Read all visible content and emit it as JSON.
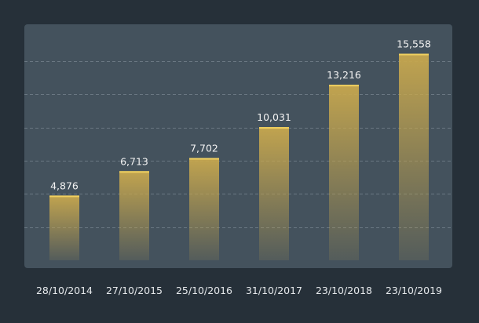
{
  "colors": {
    "page_background": "#263039",
    "plot_background": "#44525d",
    "bar_top": "#c8a84e",
    "bar_bottom": "#c8a84e",
    "bar_edge": "#f0d060",
    "gridline": "#8a96a0",
    "label_text": "#f2f2f2"
  },
  "chart_data": {
    "type": "bar",
    "title": "",
    "xlabel": "",
    "ylabel": "",
    "categories": [
      "28/10/2014",
      "27/10/2015",
      "25/10/2016",
      "31/10/2017",
      "23/10/2018",
      "23/10/2019"
    ],
    "values": [
      4876,
      6713,
      7702,
      10031,
      13216,
      15558
    ],
    "data_labels": [
      "4,876",
      "6,713",
      "7,702",
      "10,031",
      "13,216",
      "15,558"
    ],
    "ylim": [
      0,
      16000
    ],
    "grid": true,
    "y_axis_visible": false,
    "legend": "none"
  }
}
